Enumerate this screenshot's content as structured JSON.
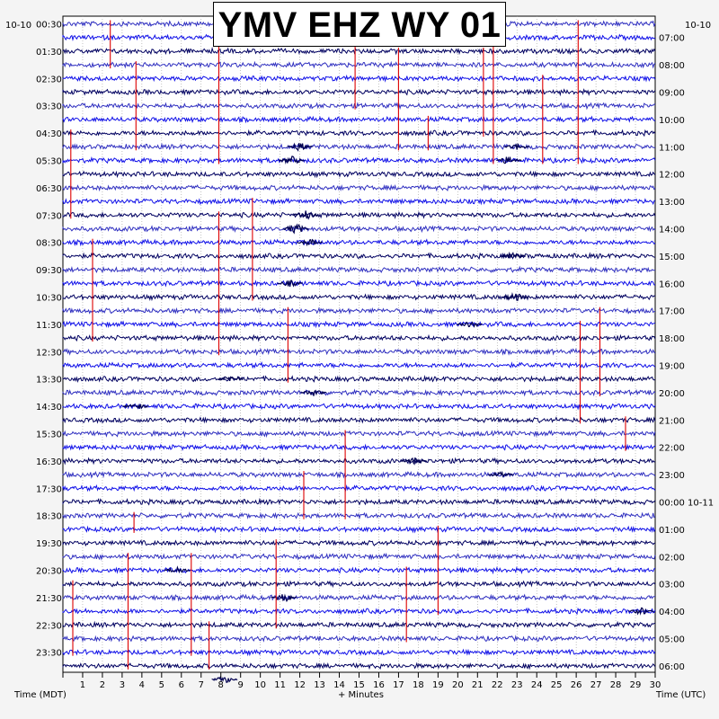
{
  "chart_data": {
    "type": "helicorder",
    "title": "YMV EHZ WY 01",
    "date_left": "10-10",
    "date_right": "10-10",
    "left_time_labels": [
      "00:30",
      "01:30",
      "02:30",
      "03:30",
      "04:30",
      "05:30",
      "06:30",
      "07:30",
      "08:30",
      "09:30",
      "10:30",
      "11:30",
      "12:30",
      "13:30",
      "14:30",
      "15:30",
      "16:30",
      "17:30",
      "18:30",
      "19:30",
      "20:30",
      "21:30",
      "22:30",
      "23:30"
    ],
    "right_time_labels": [
      "07:00",
      "08:00",
      "09:00",
      "10:00",
      "11:00",
      "12:00",
      "13:00",
      "14:00",
      "15:00",
      "16:00",
      "17:00",
      "18:00",
      "19:00",
      "20:00",
      "21:00",
      "22:00",
      "23:00",
      "00:00 10-11",
      "01:00",
      "02:00",
      "03:00",
      "04:00",
      "05:00",
      "06:00"
    ],
    "x_ticks": [
      "1",
      "2",
      "3",
      "4",
      "5",
      "6",
      "7",
      "8",
      "9",
      "10",
      "11",
      "12",
      "13",
      "14",
      "15",
      "16",
      "17",
      "18",
      "19",
      "20",
      "21",
      "22",
      "23",
      "24",
      "25",
      "26",
      "27",
      "28",
      "29",
      "30"
    ],
    "xlim": [
      0,
      30
    ],
    "xlabel": "+ Minutes",
    "left_axis_label": "Time (MDT)",
    "right_axis_label": "Time (UTC)",
    "trace_colors": [
      "#3030c0",
      "#1010e8",
      "#000060"
    ],
    "spike_color": "#dd0000",
    "grid": true
  }
}
